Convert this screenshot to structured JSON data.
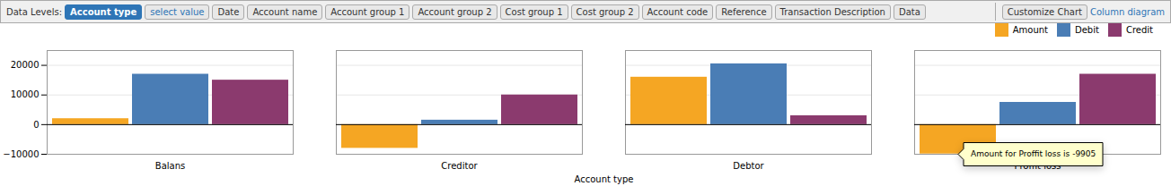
{
  "chart_data": {
    "type": "bar",
    "xlabel": "Account type",
    "categories": [
      "Balans",
      "Creditor",
      "Debtor",
      "Proffit loss"
    ],
    "series": [
      {
        "name": "Amount",
        "color": "#F5A623",
        "values": [
          2000,
          -8000,
          16000,
          -9905
        ]
      },
      {
        "name": "Debit",
        "color": "#4A7DB5",
        "values": [
          17000,
          1500,
          20500,
          7500
        ]
      },
      {
        "name": "Credit",
        "color": "#8B3A6E",
        "values": [
          15000,
          10000,
          3000,
          17000
        ]
      }
    ],
    "ylim": [
      -10000,
      25000
    ],
    "yticks": [
      -10000,
      0,
      10000,
      20000
    ],
    "grid": true,
    "legend": "upper right",
    "annotations": [
      {
        "text": "Amount for Proffit loss is -9905",
        "category": "Proffit loss",
        "series": "Amount"
      }
    ],
    "toolbar": [
      "Data Levels:",
      "Account type",
      "select value",
      "Date",
      "Account name",
      "Account group 1",
      "Account group 2",
      "Cost group 1",
      "Cost group 2",
      "Account code",
      "Reference",
      "Transaction Description",
      "Data",
      "Customize Chart",
      "Column diagram"
    ]
  }
}
